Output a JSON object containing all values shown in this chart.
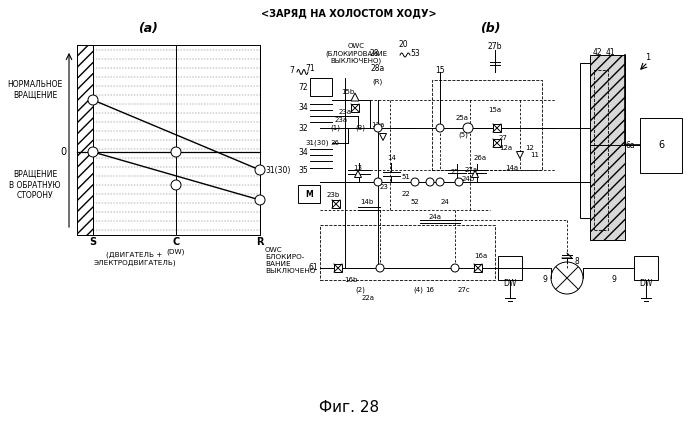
{
  "title_top": "<ЗАРЯД НА ХОЛОСТОМ ХОДУ>",
  "label_a": "(a)",
  "label_b": "(b)",
  "fig_label": "Фиг. 28",
  "normal_rotation": "НОРМАЛЬНОЕ\nВРАЩЕНИЕ",
  "reverse_rotation": "ВРАЩЕНИЕ\nВ ОБРАТНУЮ\nСТОРОНУ",
  "s_label": "S",
  "c_label": "C",
  "r_label": "R",
  "dw_label": "(DW)",
  "engine_label": "(ДВИГАТЕЛЬ +\nЭЛЕКТРОДВИГАТЕЛЬ)",
  "owc_label": "OWC\nБЛОКИРО-\nВАНИЕ\nВЫКЛЮЧЕНО",
  "owc_top_label": "OWC\n(БЛОКИРОВАНИЕ\nВЫКЛЮЧЕНО)",
  "bg_color": "#ffffff",
  "line_color": "#000000"
}
